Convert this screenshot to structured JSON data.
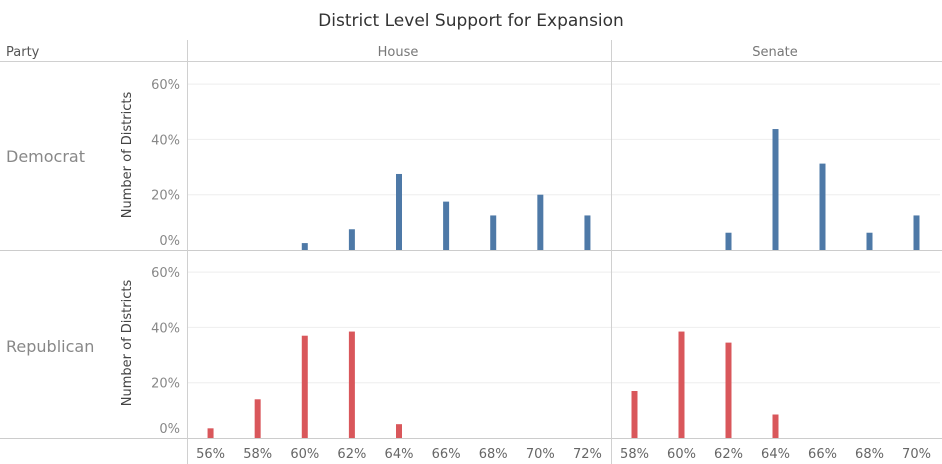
{
  "chart_data": {
    "type": "bar",
    "title": "District Level Support for Expansion",
    "row_header": "Party",
    "ylabel": "Number of Districts",
    "ylim": [
      0,
      0.68
    ],
    "yticks": [
      0,
      0.2,
      0.4,
      0.6
    ],
    "ytick_labels": [
      "0%",
      "20%",
      "40%",
      "60%"
    ],
    "grid": true,
    "columns": [
      {
        "name": "House",
        "x_categories": [
          "56%",
          "58%",
          "60%",
          "62%",
          "64%",
          "66%",
          "68%",
          "70%",
          "72%"
        ]
      },
      {
        "name": "Senate",
        "x_categories": [
          "58%",
          "60%",
          "62%",
          "64%",
          "66%",
          "68%",
          "70%"
        ]
      }
    ],
    "rows": [
      {
        "name": "Democrat",
        "color": "#4e79a7"
      },
      {
        "name": "Republican",
        "color": "#d9575b"
      }
    ],
    "panels": [
      {
        "row": "Democrat",
        "column": "House",
        "values": [
          0,
          0,
          0.025,
          0.075,
          0.275,
          0.175,
          0.125,
          0.2,
          0.125
        ]
      },
      {
        "row": "Democrat",
        "column": "Senate",
        "values": [
          0,
          0,
          0.0625,
          0.4375,
          0.3125,
          0.0625,
          0.125
        ]
      },
      {
        "row": "Republican",
        "column": "House",
        "values": [
          0.035,
          0.14,
          0.37,
          0.385,
          0.05,
          0,
          0,
          0,
          0
        ]
      },
      {
        "row": "Republican",
        "column": "Senate",
        "values": [
          0.17,
          0.385,
          0.345,
          0.085,
          0,
          0,
          0
        ]
      }
    ]
  }
}
